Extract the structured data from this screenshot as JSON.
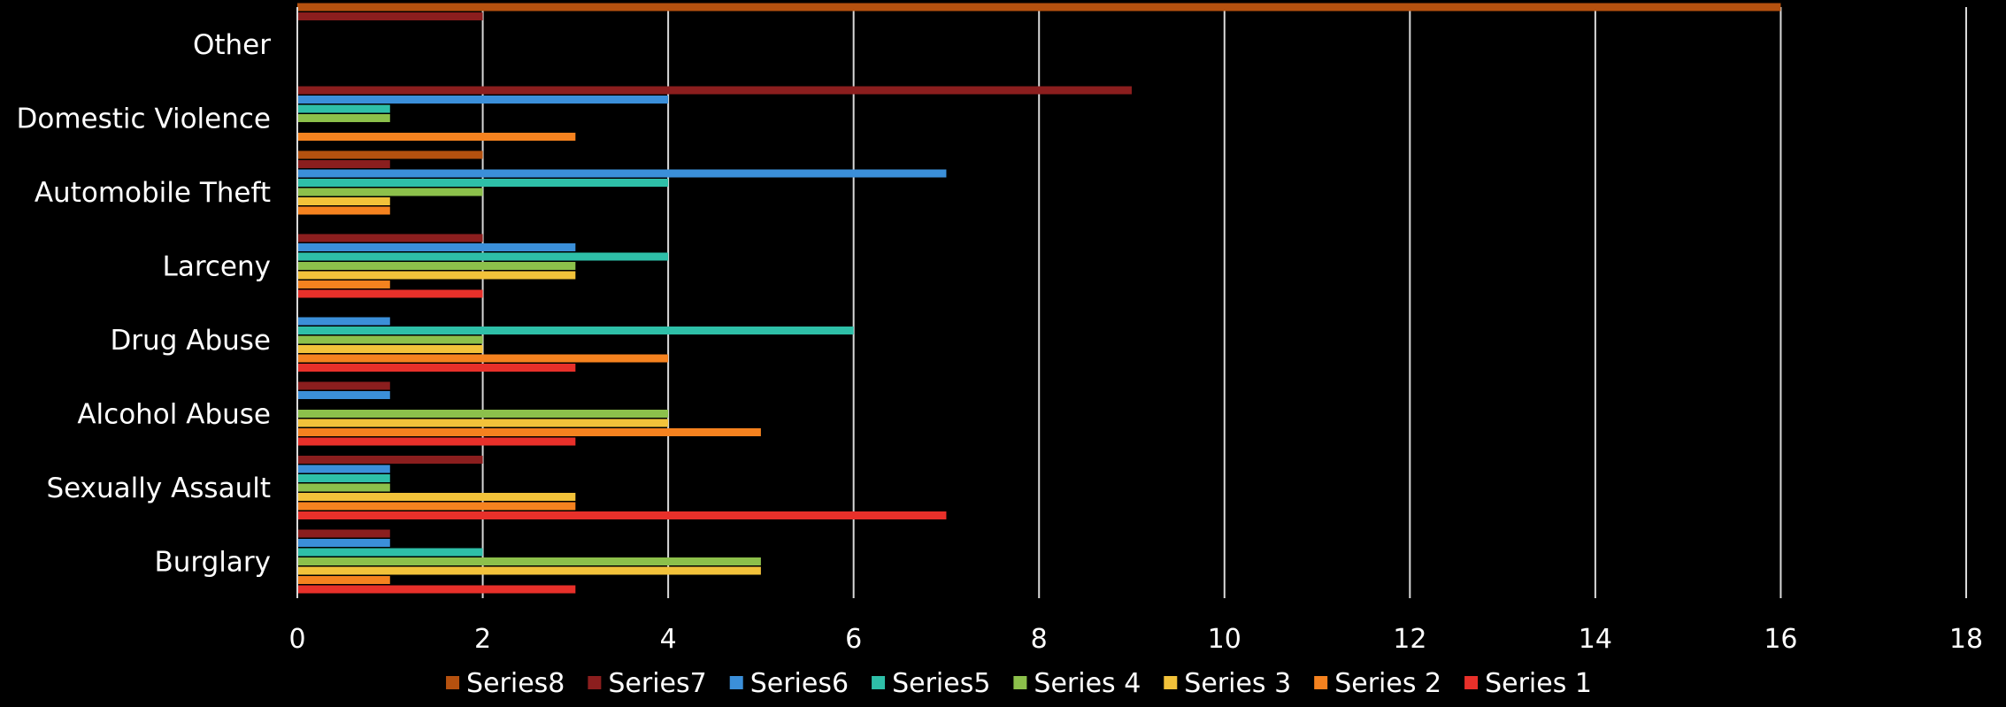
{
  "chart_data": {
    "type": "bar",
    "orientation": "horizontal",
    "title": "",
    "xlabel": "",
    "ylabel": "",
    "xlim": [
      0,
      18
    ],
    "xticks": [
      "0",
      "2",
      "4",
      "6",
      "8",
      "10",
      "12",
      "14",
      "16",
      "18"
    ],
    "grid": "vertical",
    "legend_position": "bottom",
    "background": "#000000",
    "categories": [
      "Burglary",
      "Sexually Assault",
      "Alcohol Abuse",
      "Drug Abuse",
      "Larceny",
      "Automobile Theft",
      "Domestic Violence",
      "Other"
    ],
    "series": [
      {
        "name": "Series 1",
        "color": "#e8302a",
        "values": [
          3,
          7,
          3,
          3,
          2,
          0,
          0,
          0
        ]
      },
      {
        "name": "Series 2",
        "color": "#f5821f",
        "values": [
          1,
          3,
          5,
          4,
          1,
          1,
          3,
          0
        ]
      },
      {
        "name": "Series 3",
        "color": "#f2c23a",
        "values": [
          5,
          3,
          4,
          2,
          3,
          1,
          0,
          0
        ]
      },
      {
        "name": "Series 4",
        "color": "#8cc04b",
        "values": [
          5,
          1,
          4,
          2,
          3,
          2,
          1,
          0
        ]
      },
      {
        "name": "Series5",
        "color": "#2ebfa8",
        "values": [
          2,
          1,
          0,
          6,
          4,
          4,
          1,
          0
        ]
      },
      {
        "name": "Series6",
        "color": "#3b8fd9",
        "values": [
          1,
          1,
          1,
          1,
          3,
          7,
          4,
          0
        ]
      },
      {
        "name": "Series7",
        "color": "#8b1e1e",
        "values": [
          1,
          2,
          1,
          0,
          2,
          1,
          9,
          2
        ]
      },
      {
        "name": "Series8",
        "color": "#b5510f",
        "values": [
          0,
          0,
          0,
          0,
          0,
          2,
          0,
          16
        ]
      }
    ],
    "legend_order": [
      "Series8",
      "Series7",
      "Series6",
      "Series5",
      "Series 4",
      "Series 3",
      "Series 2",
      "Series 1"
    ]
  }
}
